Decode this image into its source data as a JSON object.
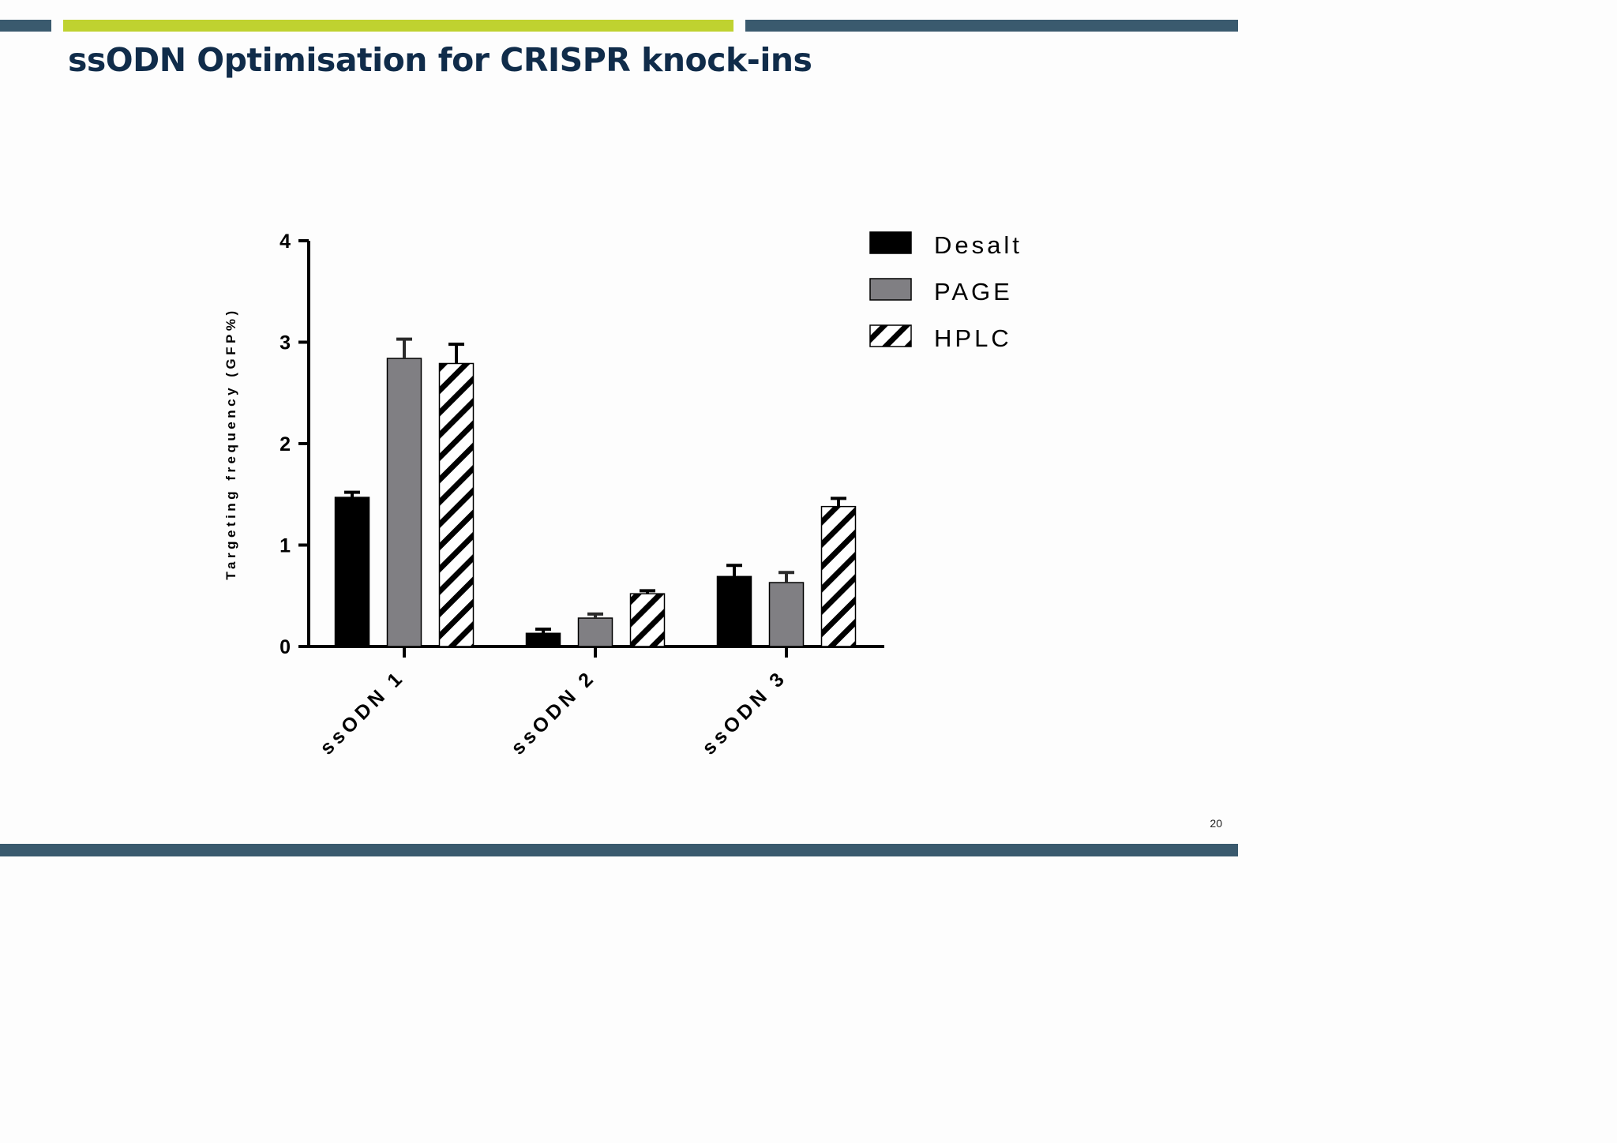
{
  "slide": {
    "title": "ssODN Optimisation for CRISPR knock-ins",
    "page_number": "20",
    "colors": {
      "navy_bar": "#3a5a6e",
      "lime_bar": "#bfd230",
      "title": "#102c4a"
    }
  },
  "chart_data": {
    "type": "bar",
    "title": "",
    "xlabel": "",
    "ylabel": "Targeting frequency (GFP%)",
    "ylim": [
      0,
      4
    ],
    "yticks": [
      "0",
      "1",
      "2",
      "3",
      "4"
    ],
    "categories": [
      "ssODN 1",
      "ssODN 2",
      "ssODN 3"
    ],
    "legend_position": "top-right",
    "grid": false,
    "series": [
      {
        "name": "Desalt",
        "fill": "solid-black",
        "color": "#000000",
        "values": [
          1.47,
          0.13,
          0.69
        ],
        "errors": [
          0.05,
          0.04,
          0.11
        ]
      },
      {
        "name": "PAGE",
        "fill": "solid-grey",
        "color": "#807f83",
        "values": [
          2.84,
          0.28,
          0.63
        ],
        "errors": [
          0.19,
          0.04,
          0.1
        ]
      },
      {
        "name": "HPLC",
        "fill": "diagonal-hatch",
        "color": "#000000",
        "values": [
          2.79,
          0.52,
          1.38
        ],
        "errors": [
          0.19,
          0.03,
          0.08
        ]
      }
    ]
  }
}
